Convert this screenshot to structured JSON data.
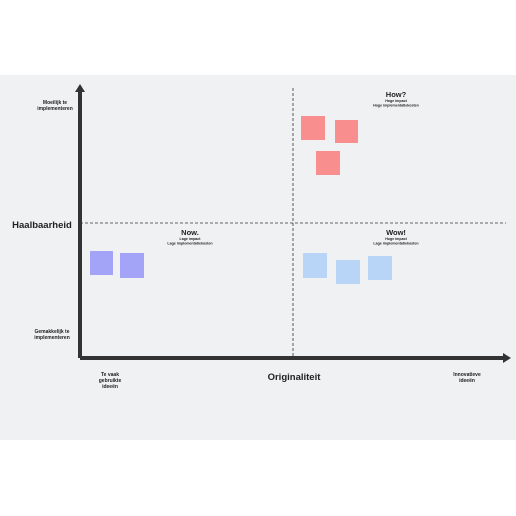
{
  "axes": {
    "y_label": "Haalbaarheid",
    "y_top": [
      "Moeilijk te",
      "implementeren"
    ],
    "y_bottom": [
      "Gemakkelijk te",
      "implementeren"
    ],
    "x_label": "Originaliteit",
    "x_left": [
      "Te vaak",
      "gebruikte",
      "ideeën"
    ],
    "x_right": [
      "Innovatieve",
      "ideeën"
    ]
  },
  "quadrants": [
    {
      "title": "How?",
      "lines": [
        "Hoge impact",
        "Hoge implementatiekosten"
      ]
    },
    {
      "title": "Now.",
      "lines": [
        "Lage impact",
        "Lage implementatiekosten"
      ]
    },
    {
      "title": "Wow!",
      "lines": [
        "Hoge impact",
        "Lage implementatiekosten"
      ]
    }
  ]
}
